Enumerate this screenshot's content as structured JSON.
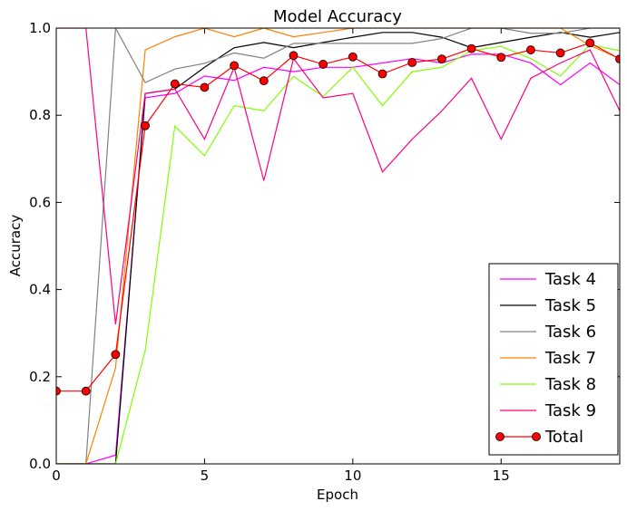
{
  "chart_data": {
    "type": "line",
    "title": "Model Accuracy",
    "xlabel": "Epoch",
    "ylabel": "Accuracy",
    "xlim": [
      0,
      19
    ],
    "ylim": [
      0,
      1
    ],
    "xticks": [
      "0",
      "5",
      "10",
      "15"
    ],
    "yticks": [
      "0.0",
      "0.2",
      "0.4",
      "0.6",
      "0.8",
      "1.0"
    ],
    "grid": false,
    "legend_position": "lower-right",
    "x": [
      0,
      1,
      2,
      3,
      4,
      5,
      6,
      7,
      8,
      9,
      10,
      11,
      12,
      13,
      14,
      15,
      16,
      17,
      18,
      19
    ],
    "series": [
      {
        "name": "Task 4",
        "color": "#ff00ff",
        "marker": "none",
        "values": [
          0.0,
          0.0,
          0.02,
          0.84,
          0.85,
          0.89,
          0.88,
          0.91,
          0.9,
          0.91,
          0.91,
          0.92,
          0.93,
          0.92,
          0.94,
          0.94,
          0.92,
          0.87,
          0.92,
          0.87
        ]
      },
      {
        "name": "Task 5",
        "color": "#000000",
        "marker": "none",
        "values": [
          0.0,
          0.0,
          0.0,
          0.85,
          0.86,
          0.91,
          0.955,
          0.967,
          0.955,
          0.967,
          0.979,
          0.99,
          0.99,
          0.979,
          0.955,
          0.967,
          0.979,
          0.99,
          0.979,
          0.99
        ]
      },
      {
        "name": "Task 6",
        "color": "#808080",
        "marker": "none",
        "values": [
          0.0,
          0.0,
          1.0,
          0.875,
          0.906,
          0.919,
          0.943,
          0.931,
          0.965,
          0.965,
          0.965,
          0.965,
          0.965,
          0.976,
          1.0,
          1.0,
          0.988,
          0.988,
          1.0,
          1.0
        ]
      },
      {
        "name": "Task 7",
        "color": "#ff8000",
        "marker": "none",
        "values": [
          0.0,
          0.0,
          0.22,
          0.95,
          0.98,
          1.0,
          0.98,
          1.0,
          0.98,
          0.99,
          1.0,
          1.0,
          1.0,
          1.0,
          1.0,
          1.0,
          1.0,
          1.0,
          0.96,
          0.93
        ]
      },
      {
        "name": "Task 8",
        "color": "#80ff00",
        "marker": "none",
        "values": [
          0.0,
          0.0,
          0.0,
          0.26,
          0.775,
          0.707,
          0.822,
          0.81,
          0.889,
          0.843,
          0.91,
          0.822,
          0.9,
          0.91,
          0.948,
          0.958,
          0.93,
          0.89,
          0.962,
          0.948
        ]
      },
      {
        "name": "Task 9",
        "color": "#ff0080",
        "marker": "none",
        "values": [
          1.0,
          1.0,
          0.32,
          0.85,
          0.86,
          0.745,
          0.91,
          0.65,
          0.93,
          0.84,
          0.85,
          0.67,
          0.745,
          0.81,
          0.885,
          0.745,
          0.885,
          0.92,
          0.95,
          0.81
        ]
      },
      {
        "name": "Total",
        "color": "#ff0000",
        "marker": "circle",
        "values": [
          0.167,
          0.167,
          0.251,
          0.776,
          0.872,
          0.864,
          0.914,
          0.879,
          0.937,
          0.917,
          0.934,
          0.895,
          0.921,
          0.929,
          0.953,
          0.933,
          0.95,
          0.943,
          0.966,
          0.929
        ]
      }
    ]
  }
}
